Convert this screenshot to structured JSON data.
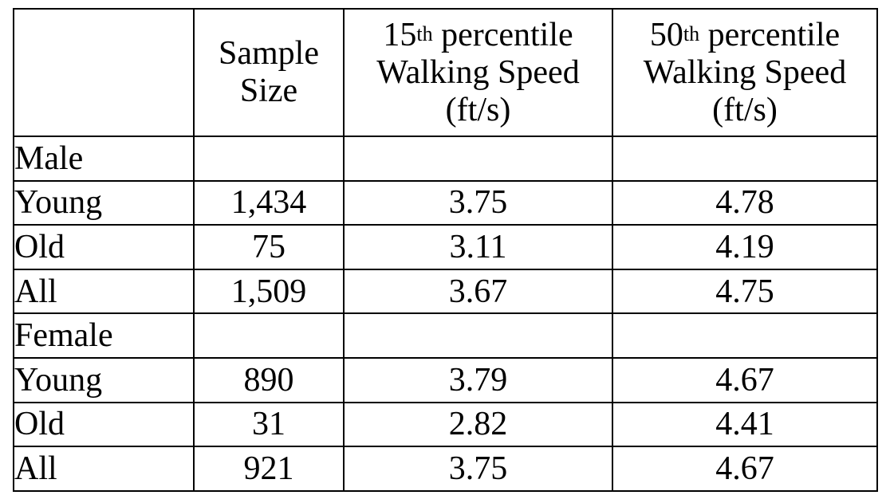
{
  "header": {
    "blank": "",
    "sample_size": [
      "Sample",
      "Size"
    ],
    "p15": {
      "number": "15",
      "suffix": "th",
      "title": "percentile",
      "line2": "Walking Speed",
      "line3": "(ft/s)"
    },
    "p50": {
      "number": "50",
      "suffix": "th",
      "title": "percentile",
      "line2": "Walking Speed",
      "line3": "(ft/s)"
    }
  },
  "groups": [
    {
      "label": "Male",
      "rows": [
        {
          "label": "Young",
          "sample_size": "1,434",
          "p15": "3.75",
          "p50": "4.78"
        },
        {
          "label": "Old",
          "sample_size": "75",
          "p15": "3.11",
          "p50": "4.19"
        },
        {
          "label": "All",
          "sample_size": "1,509",
          "p15": "3.67",
          "p50": "4.75"
        }
      ]
    },
    {
      "label": "Female",
      "rows": [
        {
          "label": "Young",
          "sample_size": "890",
          "p15": "3.79",
          "p50": "4.67"
        },
        {
          "label": "Old",
          "sample_size": "31",
          "p15": "2.82",
          "p50": "4.41"
        },
        {
          "label": "All",
          "sample_size": "921",
          "p15": "3.75",
          "p50": "4.67"
        }
      ]
    }
  ]
}
